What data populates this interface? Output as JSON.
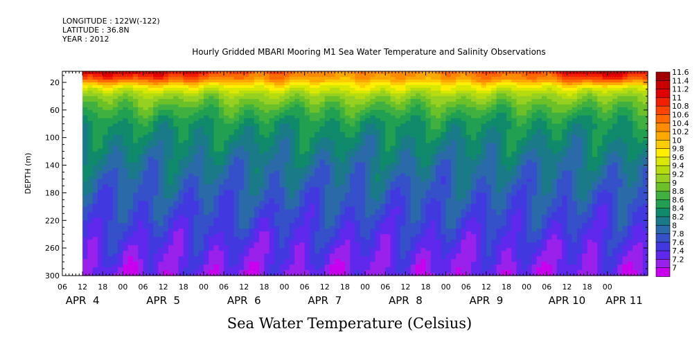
{
  "header": {
    "longitude": "LONGITUDE : 122W(-122)",
    "latitude": "LATITUDE : 36.8N",
    "year": "YEAR : 2012"
  },
  "chart_data": {
    "type": "heatmap",
    "title": "Hourly Gridded MBARI Mooring M1 Sea Water Temperature and Salinity Observations",
    "xlabel": "Sea Water Temperature (Celsius)",
    "ylabel": "DEPTH (m)",
    "x_range_hours": [
      0,
      174
    ],
    "y_range_m": [
      4,
      300
    ],
    "data_start_hour": 6,
    "y_ticks": [
      20,
      60,
      100,
      140,
      180,
      220,
      260,
      300
    ],
    "x_hour_ticks": [
      {
        "hour": 0,
        "label": "06"
      },
      {
        "hour": 6,
        "label": "12"
      },
      {
        "hour": 12,
        "label": "18"
      },
      {
        "hour": 18,
        "label": "00"
      },
      {
        "hour": 24,
        "label": "06"
      },
      {
        "hour": 30,
        "label": "12"
      },
      {
        "hour": 36,
        "label": "18"
      },
      {
        "hour": 42,
        "label": "00"
      },
      {
        "hour": 48,
        "label": "06"
      },
      {
        "hour": 54,
        "label": "12"
      },
      {
        "hour": 60,
        "label": "18"
      },
      {
        "hour": 66,
        "label": "00"
      },
      {
        "hour": 72,
        "label": "06"
      },
      {
        "hour": 78,
        "label": "12"
      },
      {
        "hour": 84,
        "label": "18"
      },
      {
        "hour": 90,
        "label": "00"
      },
      {
        "hour": 96,
        "label": "06"
      },
      {
        "hour": 102,
        "label": "12"
      },
      {
        "hour": 108,
        "label": "18"
      },
      {
        "hour": 114,
        "label": "00"
      },
      {
        "hour": 120,
        "label": "06"
      },
      {
        "hour": 126,
        "label": "12"
      },
      {
        "hour": 132,
        "label": "18"
      },
      {
        "hour": 138,
        "label": "00"
      },
      {
        "hour": 144,
        "label": "06"
      },
      {
        "hour": 150,
        "label": "12"
      },
      {
        "hour": 156,
        "label": "18"
      },
      {
        "hour": 162,
        "label": "00"
      }
    ],
    "date_labels": [
      {
        "hour": 6,
        "label": "APR  4"
      },
      {
        "hour": 30,
        "label": "APR  5"
      },
      {
        "hour": 54,
        "label": "APR  6"
      },
      {
        "hour": 78,
        "label": "APR  7"
      },
      {
        "hour": 102,
        "label": "APR  8"
      },
      {
        "hour": 126,
        "label": "APR  9"
      },
      {
        "hour": 150,
        "label": "APR 10"
      },
      {
        "hour": 167,
        "label": "APR 11"
      }
    ],
    "colorbar": {
      "levels": [
        11.6,
        11.4,
        11.2,
        11,
        10.8,
        10.6,
        10.4,
        10.2,
        10,
        9.8,
        9.6,
        9.4,
        9.2,
        9,
        8.8,
        8.6,
        8.4,
        8.2,
        8,
        7.8,
        7.6,
        7.4,
        7.2,
        7
      ],
      "colors": [
        "#a00000",
        "#c80000",
        "#e00000",
        "#f02000",
        "#ff4500",
        "#ff6a00",
        "#ff8c00",
        "#ffa800",
        "#ffcc00",
        "#ffee00",
        "#d8e800",
        "#b6dc10",
        "#96d020",
        "#6cc028",
        "#40b040",
        "#20a050",
        "#0f8a6a",
        "#1a7a88",
        "#2a6aa8",
        "#3550c8",
        "#4238e0",
        "#6028ec",
        "#9a20ec",
        "#c800ee"
      ]
    },
    "depth_profile": [
      {
        "depth": 4,
        "temp": 11.0
      },
      {
        "depth": 15,
        "temp": 10.6
      },
      {
        "depth": 25,
        "temp": 9.9
      },
      {
        "depth": 40,
        "temp": 9.3
      },
      {
        "depth": 60,
        "temp": 8.9
      },
      {
        "depth": 80,
        "temp": 8.6
      },
      {
        "depth": 110,
        "temp": 8.4
      },
      {
        "depth": 140,
        "temp": 8.2
      },
      {
        "depth": 180,
        "temp": 8.0
      },
      {
        "depth": 220,
        "temp": 7.8
      },
      {
        "depth": 260,
        "temp": 7.55
      },
      {
        "depth": 300,
        "temp": 7.35
      }
    ]
  }
}
